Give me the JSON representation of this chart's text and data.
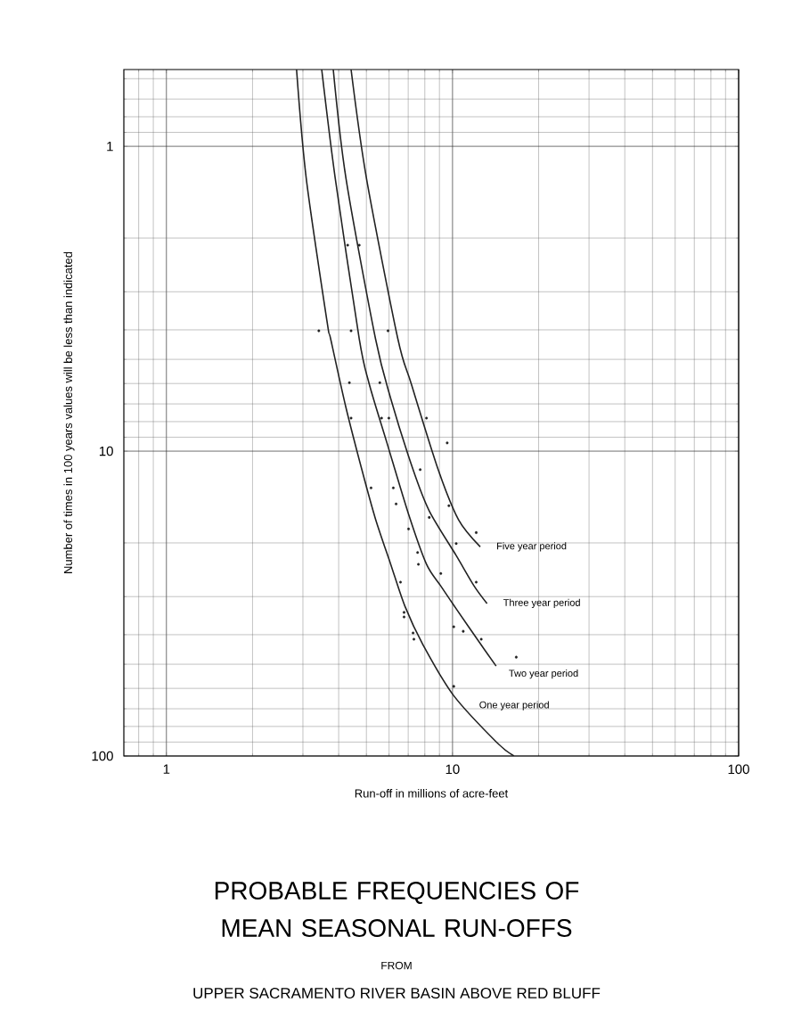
{
  "chart_data": {
    "type": "line",
    "title": "PROBABLE FREQUENCIES OF MEAN SEASONAL RUN-OFFS",
    "subtitle": "FROM",
    "annotations": [
      "UPPER SACRAMENTO RIVER BASIN ABOVE RED BLUFF"
    ],
    "xlabel": "Run-off in millions of acre-feet",
    "ylabel": "Number of times in 100 years values will be less than indicated",
    "log": "xy",
    "grid": true,
    "legend": false,
    "marker": "none",
    "line_style": "solid",
    "xlim": [
      0.71,
      100
    ],
    "ylim": [
      100,
      0.56
    ],
    "xticks": [
      1,
      10,
      100
    ],
    "yticks": [
      1,
      10,
      100
    ],
    "series": [
      {
        "name": "One year period",
        "color": "#222222",
        "x": [
          2.85,
          3.08,
          3.64,
          3.75,
          4.24,
          4.82,
          5.38,
          6.08,
          6.82,
          7.88,
          10.07,
          14.3,
          16.4
        ],
        "values": [
          0.56,
          1.27,
          3.74,
          4.28,
          7.19,
          11.5,
          16.7,
          23.5,
          32.3,
          43.1,
          63.2,
          90.4,
          100
        ]
      },
      {
        "name": "Two year period",
        "color": "#222222",
        "x": [
          3.49,
          3.89,
          4.72,
          5.11,
          5.9,
          7.02,
          8.11,
          9.1,
          10.3,
          12.2,
          14.2
        ],
        "values": [
          0.56,
          1.27,
          4.28,
          6.0,
          9.4,
          16.1,
          23.5,
          27.7,
          32.9,
          41.4,
          50.7
        ]
      },
      {
        "name": "Three year period",
        "color": "#222222",
        "x": [
          3.83,
          4.24,
          5.38,
          6.08,
          7.28,
          8.29,
          10.3,
          11.9,
          13.2
        ],
        "values": [
          0.56,
          1.27,
          4.28,
          6.72,
          11.5,
          15.7,
          22.0,
          27.7,
          31.6
        ]
      },
      {
        "name": "Five year period",
        "color": "#222222",
        "x": [
          4.42,
          5.0,
          6.44,
          7.17,
          8.91,
          10.5,
          12.5
        ],
        "values": [
          0.56,
          1.27,
          4.28,
          6.0,
          11.5,
          16.8,
          20.6
        ]
      },
      {
        "type": "scatter",
        "marker": "circle",
        "color": "#222222",
        "x": [
          3.41,
          4.3,
          4.42,
          4.72,
          5.95,
          4.36,
          4.42,
          5.57,
          5.65,
          5.99,
          8.11,
          9.58,
          7.71,
          5.19,
          6.21,
          6.35,
          8.29,
          9.71,
          7.02,
          7.55,
          7.6,
          6.58,
          9.1,
          10.3,
          12.1,
          12.1,
          6.77,
          6.77,
          7.28,
          7.33,
          10.1,
          10.9,
          12.6,
          16.7,
          10.1
        ],
        "values": [
          4.03,
          2.11,
          4.03,
          2.11,
          4.03,
          5.96,
          7.79,
          5.96,
          7.79,
          7.79,
          7.79,
          9.4,
          11.5,
          13.2,
          13.2,
          14.9,
          16.5,
          15.1,
          18.0,
          21.5,
          23.5,
          26.9,
          25.2,
          20.1,
          18.5,
          26.9,
          33.8,
          35.0,
          39.5,
          41.4,
          37.7,
          39.0,
          41.4,
          47.4,
          59.1
        ]
      }
    ]
  }
}
